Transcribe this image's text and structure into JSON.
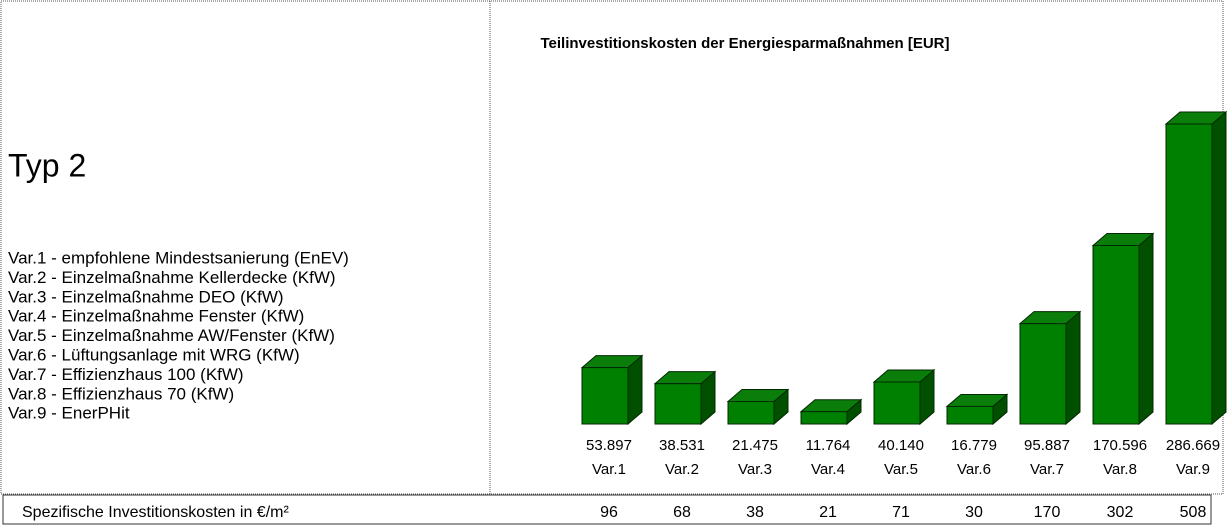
{
  "heading": "Typ 2",
  "variants": [
    "Var.1 - empfohlene Mindestsanierung (EnEV)",
    "Var.2 - Einzelmaßnahme Kellerdecke (KfW)",
    "Var.3 - Einzelmaßnahme DEO (KfW)",
    "Var.4 - Einzelmaßnahme Fenster (KfW)",
    "Var.5 - Einzelmaßnahme AW/Fenster (KfW)",
    "Var.6 - Lüftungsanlage mit WRG (KfW)",
    "Var.7 - Effizienzhaus 100 (KfW)",
    "Var.8 - Effizienzhaus 70 (KfW)",
    "Var.9 - EnerPHit"
  ],
  "chart_data": {
    "type": "bar",
    "title": "Teilinvestitionskosten der Energiesparmaßnahmen [EUR]",
    "categories": [
      "Var.1",
      "Var.2",
      "Var.3",
      "Var.4",
      "Var.5",
      "Var.6",
      "Var.7",
      "Var.8",
      "Var.9"
    ],
    "values": [
      53897,
      38531,
      21475,
      11764,
      40140,
      16779,
      95887,
      170596,
      286669
    ],
    "value_labels": [
      "53.897",
      "38.531",
      "21.475",
      "11.764",
      "40.140",
      "16.779",
      "95.887",
      "170.596",
      "286.669"
    ],
    "color": "#008000"
  },
  "table": {
    "label": "Spezifische Investitionskosten in €/m²",
    "values": [
      96,
      68,
      38,
      21,
      71,
      30,
      170,
      302,
      508
    ]
  }
}
